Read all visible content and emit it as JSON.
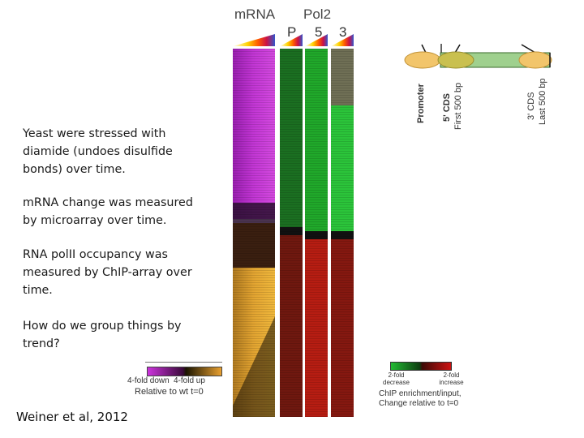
{
  "figure": {
    "header_mrna": "mRNA",
    "header_pol2": "Pol2",
    "sub_p": "P",
    "sub_5": "5",
    "sub_3": "3"
  },
  "text": {
    "p1": "Yeast were stressed with diamide (undoes disulfide bonds) over time.",
    "p2": "mRNA change was measured by microarray over time.",
    "p3": "RNA polII occupancy was measured by ChIP-array over time.",
    "p4": "How do we group things by trend?"
  },
  "legend_mrna": {
    "down": "4-fold down",
    "up": "4-fold up",
    "caption": "Relative to wt t=0",
    "colors": {
      "down": "#cc33dd",
      "up": "#e8a030"
    }
  },
  "legend_chip": {
    "left": "2-fold decrease",
    "right": "2-fold increase",
    "caption1": "ChIP enrichment/input,",
    "caption2": "Change relative to t=0",
    "colors": {
      "decrease": "#22bb33",
      "increase": "#cc1111"
    }
  },
  "gene_diagram": {
    "promoter": "Promoter",
    "cds5_a": "5' CDS",
    "cds5_b": "First 500 bp",
    "cds3_a": "3' CDS",
    "cds3_b": "Last 500 bp"
  },
  "citation": "Weiner et al, 2012"
}
